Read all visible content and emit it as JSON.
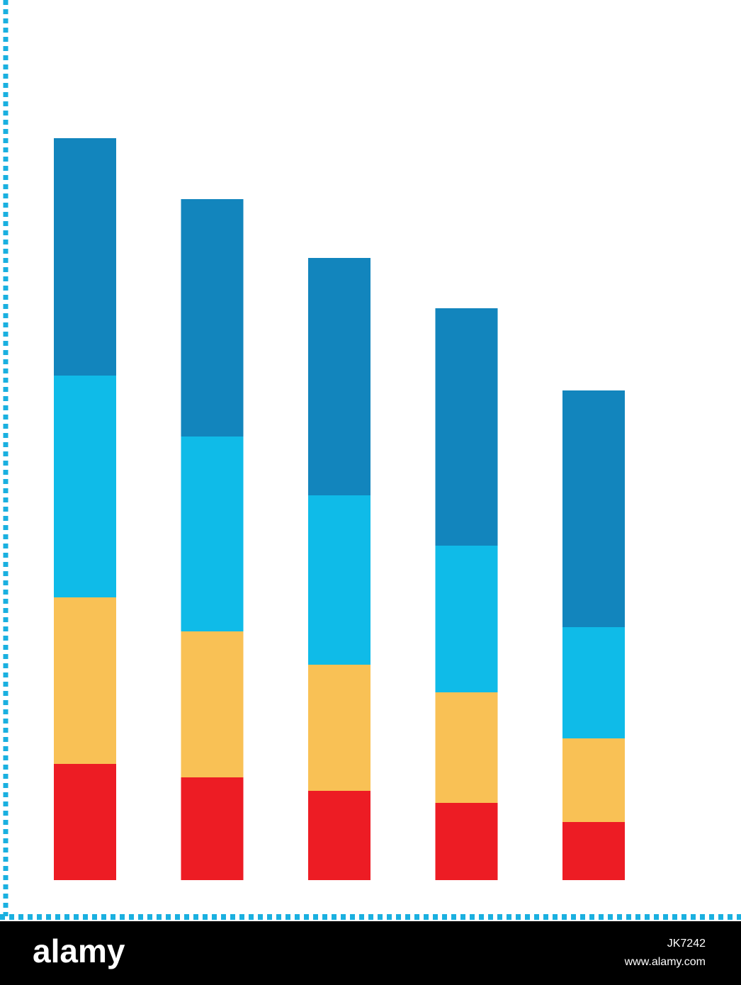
{
  "chart_data": {
    "type": "stacked-bar",
    "categories": [
      null,
      null,
      null,
      null,
      null
    ],
    "series": [
      {
        "color": "#ed1c24",
        "values": [
          164,
          145,
          126,
          109,
          82
        ]
      },
      {
        "color": "#f9c155",
        "values": [
          235,
          206,
          178,
          156,
          118
        ]
      },
      {
        "color": "#0fbbe8",
        "values": [
          313,
          275,
          239,
          207,
          157
        ]
      },
      {
        "color": "#1285bd",
        "values": [
          335,
          335,
          335,
          335,
          334
        ]
      }
    ],
    "ylim": [
      0,
      1242
    ]
  },
  "watermark": {
    "logo": "alamy",
    "id": "JK7242",
    "url": "www.alamy.com"
  }
}
